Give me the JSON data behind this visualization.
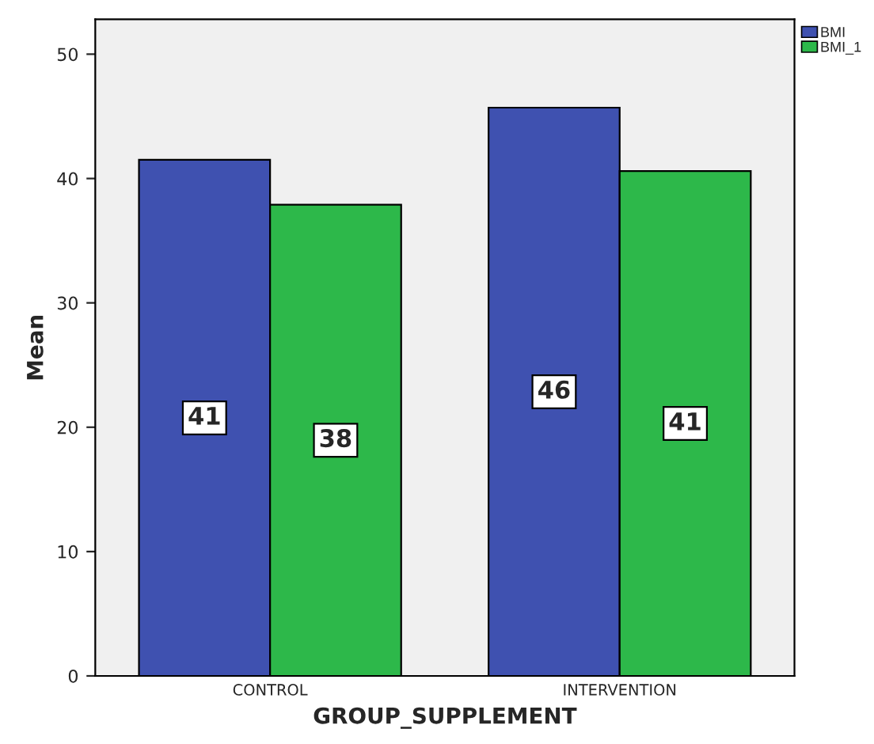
{
  "chart_data": {
    "type": "bar",
    "xlabel": "GROUP_SUPPLEMENT",
    "ylabel": "Mean",
    "categories": [
      "CONTROL",
      "INTERVENTION"
    ],
    "series": [
      {
        "name": "BMI",
        "color": "#3f51b0",
        "values": [
          41.5,
          45.7
        ],
        "value_labels": [
          "41",
          "46"
        ]
      },
      {
        "name": "BMI_1",
        "color": "#2db84a",
        "values": [
          37.9,
          40.6
        ],
        "value_labels": [
          "38",
          "41"
        ]
      }
    ],
    "ylim": [
      0,
      52.8
    ],
    "yticks": [
      0,
      10,
      20,
      30,
      40,
      50
    ],
    "grid": false,
    "legend": "top right"
  }
}
